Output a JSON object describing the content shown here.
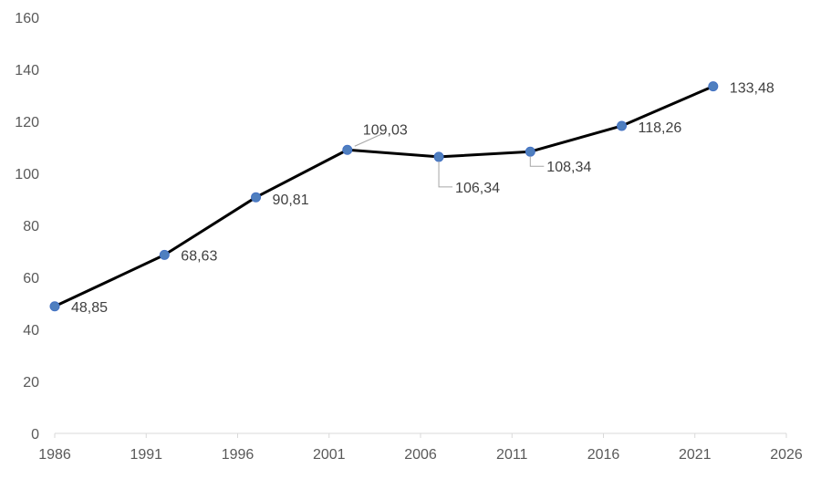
{
  "chart_data": {
    "type": "line",
    "title": "",
    "xlabel": "",
    "ylabel": "",
    "xlim": [
      1986,
      2026
    ],
    "ylim": [
      0,
      160
    ],
    "x_ticks": [
      1986,
      1991,
      1996,
      2001,
      2006,
      2011,
      2016,
      2021,
      2026
    ],
    "y_ticks": [
      0,
      20,
      40,
      60,
      80,
      100,
      120,
      140,
      160
    ],
    "grid": false,
    "legend": "none",
    "series": [
      {
        "color": "#000000",
        "marker_color": "#4f7fbf",
        "points": [
          {
            "x": 1986,
            "y": 48.85,
            "label": "48,85"
          },
          {
            "x": 1992,
            "y": 68.63,
            "label": "68,63"
          },
          {
            "x": 1997,
            "y": 90.81,
            "label": "90,81"
          },
          {
            "x": 2002,
            "y": 109.03,
            "label": "109,03"
          },
          {
            "x": 2007,
            "y": 106.34,
            "label": "106,34"
          },
          {
            "x": 2012,
            "y": 108.34,
            "label": "108,34"
          },
          {
            "x": 2017,
            "y": 118.26,
            "label": "118,26"
          },
          {
            "x": 2022,
            "y": 133.48,
            "label": "133,48"
          }
        ]
      }
    ]
  }
}
